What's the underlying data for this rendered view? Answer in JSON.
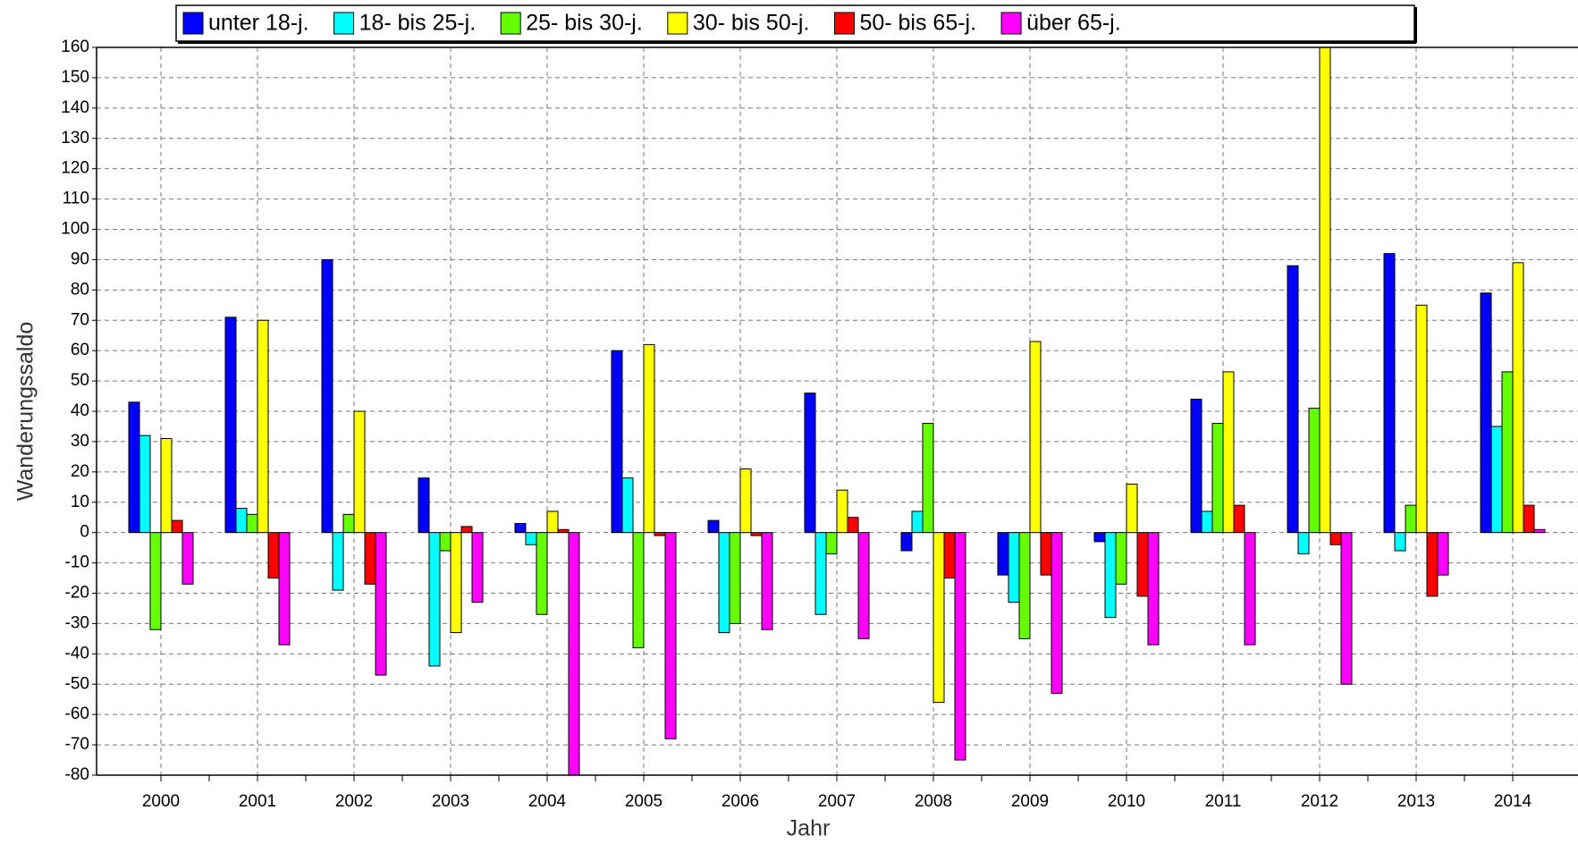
{
  "chart_data": {
    "type": "bar",
    "x_label": "Jahr",
    "y_label": "Wanderungssaldo",
    "categories": [
      "2000",
      "2001",
      "2002",
      "2003",
      "2004",
      "2005",
      "2006",
      "2007",
      "2008",
      "2009",
      "2010",
      "2011",
      "2012",
      "2013",
      "2014"
    ],
    "series": [
      {
        "name": "unter 18-j.",
        "color": "#0000ff",
        "values": [
          43,
          71,
          90,
          18,
          3,
          60,
          4,
          46,
          -6,
          -14,
          -3,
          44,
          88,
          92,
          79
        ]
      },
      {
        "name": "18- bis 25-j.",
        "color": "#00ffff",
        "values": [
          32,
          8,
          -19,
          -44,
          -4,
          18,
          -33,
          -27,
          7,
          -23,
          -28,
          7,
          -7,
          -6,
          35
        ]
      },
      {
        "name": "25- bis 30-j.",
        "color": "#66ff00",
        "values": [
          -32,
          6,
          6,
          -6,
          -27,
          -38,
          -30,
          -7,
          36,
          -35,
          -17,
          36,
          41,
          9,
          53
        ]
      },
      {
        "name": "30- bis 50-j.",
        "color": "#ffff00",
        "values": [
          31,
          70,
          40,
          -33,
          7,
          62,
          21,
          14,
          -56,
          63,
          16,
          53,
          165,
          75,
          89
        ]
      },
      {
        "name": "50- bis 65-j.",
        "color": "#ff0000",
        "values": [
          4,
          -15,
          -17,
          2,
          1,
          -1,
          -1,
          5,
          -15,
          -14,
          -21,
          9,
          -4,
          -21,
          9
        ]
      },
      {
        "name": "über 65-j.",
        "color": "#ff00ff",
        "values": [
          -17,
          -37,
          -47,
          -23,
          -80,
          -68,
          -32,
          -35,
          -75,
          -53,
          -37,
          -37,
          -50,
          -14,
          1
        ]
      }
    ],
    "ylim": [
      -80,
      160
    ],
    "yticks": [
      -80,
      -70,
      -60,
      -50,
      -40,
      -30,
      -20,
      -10,
      0,
      10,
      20,
      30,
      40,
      50,
      60,
      70,
      80,
      90,
      100,
      110,
      120,
      130,
      140,
      150,
      160
    ],
    "grid": true
  }
}
